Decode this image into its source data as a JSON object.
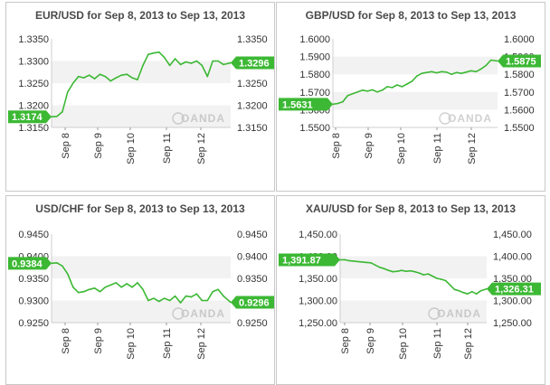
{
  "colors": {
    "line": "#3cb834",
    "badge": "#3cb834",
    "band": "#f2f2f2",
    "text": "#333333",
    "title": "#4a4a4a"
  },
  "watermark": "OANDA",
  "chart_data": [
    {
      "type": "line",
      "title": "EUR/USD for Sep 8, 2013 to Sep 13, 2013",
      "x_ticks": [
        "Sep 8",
        "Sep 9",
        "Sep 10",
        "Sep 11",
        "Sep 12"
      ],
      "x_range": [
        0,
        5
      ],
      "y_ticks": [
        "1.3350",
        "1.3300",
        "1.3250",
        "1.3200",
        "1.3150"
      ],
      "ylim": [
        1.315,
        1.335
      ],
      "start_label": "1.3174",
      "end_label": "1.3296",
      "series": [
        {
          "name": "EUR/USD",
          "x": [
            0.0,
            0.15,
            0.3,
            0.45,
            0.6,
            0.75,
            0.9,
            1.05,
            1.2,
            1.35,
            1.5,
            1.65,
            1.8,
            1.95,
            2.1,
            2.25,
            2.4,
            2.55,
            2.7,
            2.85,
            3.0,
            3.15,
            3.3,
            3.45,
            3.6,
            3.75,
            3.9,
            4.05,
            4.2,
            4.35,
            4.5,
            4.65,
            4.8,
            5.0
          ],
          "values": [
            1.3174,
            1.3175,
            1.3185,
            1.323,
            1.325,
            1.3265,
            1.3262,
            1.3268,
            1.326,
            1.327,
            1.3265,
            1.3255,
            1.3262,
            1.3268,
            1.327,
            1.3262,
            1.3258,
            1.329,
            1.3315,
            1.3318,
            1.332,
            1.3308,
            1.329,
            1.3305,
            1.3292,
            1.3298,
            1.3295,
            1.33,
            1.329,
            1.3265,
            1.33,
            1.33,
            1.3292,
            1.3296
          ]
        }
      ]
    },
    {
      "type": "line",
      "title": "GBP/USD for Sep 8, 2013 to Sep 13, 2013",
      "x_ticks": [
        "Sep 8",
        "Sep 9",
        "Sep 10",
        "Sep 11",
        "Sep 12"
      ],
      "x_range": [
        0,
        5
      ],
      "y_ticks": [
        "1.6000",
        "1.5900",
        "1.5800",
        "1.5700",
        "1.5600",
        "1.5500"
      ],
      "ylim": [
        1.55,
        1.6
      ],
      "start_label": "1.5631",
      "end_label": "1.5875",
      "series": [
        {
          "name": "GBP/USD",
          "x": [
            0.0,
            0.15,
            0.3,
            0.45,
            0.6,
            0.75,
            0.9,
            1.05,
            1.2,
            1.35,
            1.5,
            1.65,
            1.8,
            1.95,
            2.1,
            2.25,
            2.4,
            2.55,
            2.7,
            2.85,
            3.0,
            3.15,
            3.3,
            3.45,
            3.6,
            3.75,
            3.9,
            4.05,
            4.2,
            4.35,
            4.5,
            4.65,
            4.8,
            5.0
          ],
          "values": [
            1.5631,
            1.5635,
            1.5645,
            1.568,
            1.569,
            1.57,
            1.571,
            1.5705,
            1.5712,
            1.57,
            1.571,
            1.573,
            1.5725,
            1.574,
            1.573,
            1.5745,
            1.576,
            1.579,
            1.5805,
            1.581,
            1.5815,
            1.5808,
            1.5815,
            1.5812,
            1.58,
            1.581,
            1.5805,
            1.5812,
            1.582,
            1.5815,
            1.583,
            1.585,
            1.588,
            1.5875
          ]
        }
      ]
    },
    {
      "type": "line",
      "title": "USD/CHF for Sep 8, 2013 to Sep 13, 2013",
      "x_ticks": [
        "Sep 8",
        "Sep 9",
        "Sep 10",
        "Sep 11",
        "Sep 12"
      ],
      "x_range": [
        0,
        5
      ],
      "y_ticks": [
        "0.9450",
        "0.9400",
        "0.9350",
        "0.9300",
        "0.9250"
      ],
      "ylim": [
        0.925,
        0.945
      ],
      "start_label": "0.9384",
      "end_label": "0.9296",
      "series": [
        {
          "name": "USD/CHF",
          "x": [
            0.0,
            0.15,
            0.3,
            0.45,
            0.6,
            0.75,
            0.9,
            1.05,
            1.2,
            1.35,
            1.5,
            1.65,
            1.8,
            1.95,
            2.1,
            2.25,
            2.4,
            2.55,
            2.7,
            2.85,
            3.0,
            3.15,
            3.3,
            3.45,
            3.6,
            3.75,
            3.9,
            4.05,
            4.2,
            4.35,
            4.5,
            4.65,
            4.8,
            5.0
          ],
          "values": [
            0.9384,
            0.9385,
            0.9378,
            0.936,
            0.933,
            0.9318,
            0.932,
            0.9325,
            0.9328,
            0.932,
            0.933,
            0.9335,
            0.934,
            0.933,
            0.9338,
            0.933,
            0.934,
            0.9325,
            0.93,
            0.9305,
            0.9298,
            0.9305,
            0.93,
            0.931,
            0.9295,
            0.931,
            0.9308,
            0.9315,
            0.93,
            0.93,
            0.932,
            0.9325,
            0.931,
            0.9296
          ]
        }
      ]
    },
    {
      "type": "line",
      "title": "XAU/USD for Sep 8, 2013 to Sep 13, 2013",
      "x_ticks": [
        "Sep 8",
        "Sep 9",
        "Sep 10",
        "Sep 11",
        "Sep 12"
      ],
      "x_range": [
        0,
        5
      ],
      "y_ticks": [
        "1,450.00",
        "1,400.00",
        "1,350.00",
        "1,300.00",
        "1,250.00"
      ],
      "ylim": [
        1250,
        1450
      ],
      "start_label": "1,391.87",
      "end_label": "1,326.31",
      "series": [
        {
          "name": "XAU/USD",
          "x": [
            0.0,
            0.15,
            0.3,
            0.45,
            0.6,
            0.75,
            0.9,
            1.05,
            1.2,
            1.35,
            1.5,
            1.65,
            1.8,
            1.95,
            2.1,
            2.25,
            2.4,
            2.55,
            2.7,
            2.85,
            3.0,
            3.15,
            3.3,
            3.45,
            3.6,
            3.75,
            3.9,
            4.05,
            4.2,
            4.35,
            4.5,
            4.65,
            4.8,
            5.0
          ],
          "values": [
            1391.87,
            1392,
            1390,
            1389,
            1388,
            1387,
            1386,
            1385,
            1380,
            1375,
            1372,
            1368,
            1365,
            1366,
            1368,
            1366,
            1367,
            1365,
            1362,
            1358,
            1360,
            1355,
            1350,
            1348,
            1345,
            1335,
            1325,
            1322,
            1318,
            1315,
            1320,
            1315,
            1322,
            1326.31
          ]
        }
      ]
    }
  ]
}
